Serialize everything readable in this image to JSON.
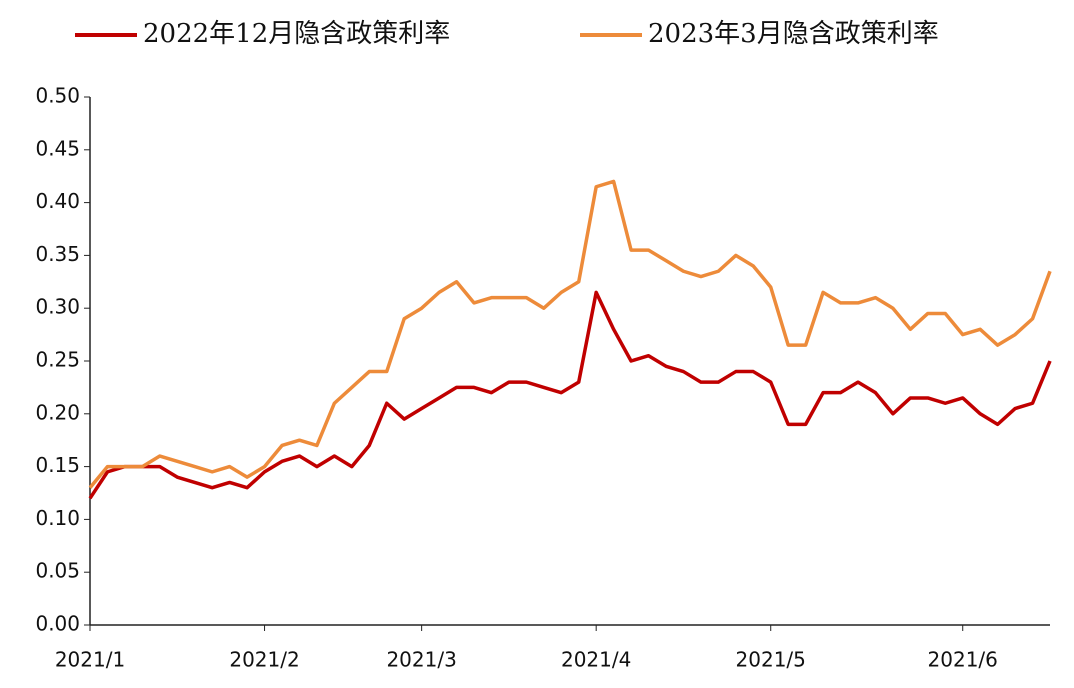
{
  "chart_data": {
    "type": "line",
    "categories": [
      "2021/1",
      null,
      null,
      null,
      null,
      null,
      null,
      null,
      null,
      null,
      "2021/2",
      null,
      null,
      null,
      null,
      null,
      null,
      null,
      null,
      "2021/3",
      null,
      null,
      null,
      null,
      null,
      null,
      null,
      null,
      null,
      "2021/4",
      null,
      null,
      null,
      null,
      null,
      null,
      null,
      null,
      null,
      "2021/5",
      null,
      null,
      null,
      null,
      null,
      null,
      null,
      null,
      null,
      null,
      "2021/6",
      null,
      null,
      null,
      null,
      null
    ],
    "series": [
      {
        "name": "2022年12月隐含政策利率",
        "color": "#c00000",
        "values": [
          0.12,
          0.145,
          0.15,
          0.15,
          0.15,
          0.14,
          0.135,
          0.13,
          0.135,
          0.13,
          0.145,
          0.155,
          0.16,
          0.15,
          0.16,
          0.15,
          0.17,
          0.21,
          0.195,
          0.205,
          0.215,
          0.225,
          0.225,
          0.22,
          0.23,
          0.23,
          0.225,
          0.22,
          0.23,
          0.315,
          0.28,
          0.25,
          0.255,
          0.245,
          0.24,
          0.23,
          0.23,
          0.24,
          0.24,
          0.23,
          0.19,
          0.19,
          0.22,
          0.22,
          0.23,
          0.22,
          0.2,
          0.215,
          0.215,
          0.21,
          0.215,
          0.2,
          0.19,
          0.205,
          0.21,
          0.25
        ]
      },
      {
        "name": "2023年3月隐含政策利率",
        "color": "#ed8b3a",
        "values": [
          0.13,
          0.15,
          0.15,
          0.15,
          0.16,
          0.155,
          0.15,
          0.145,
          0.15,
          0.14,
          0.15,
          0.17,
          0.175,
          0.17,
          0.21,
          0.225,
          0.24,
          0.24,
          0.29,
          0.3,
          0.315,
          0.325,
          0.305,
          0.31,
          0.31,
          0.31,
          0.3,
          0.315,
          0.325,
          0.415,
          0.42,
          0.355,
          0.355,
          0.345,
          0.335,
          0.33,
          0.335,
          0.35,
          0.34,
          0.32,
          0.265,
          0.265,
          0.315,
          0.305,
          0.305,
          0.31,
          0.3,
          0.28,
          0.295,
          0.295,
          0.275,
          0.28,
          0.265,
          0.275,
          0.29,
          0.335
        ]
      }
    ],
    "ylim": [
      0,
      0.5
    ],
    "yticks": [
      {
        "value": 0,
        "label": "0.00"
      },
      {
        "value": 0.05,
        "label": "0.05"
      },
      {
        "value": 0.1,
        "label": "0.10"
      },
      {
        "value": 0.15,
        "label": "0.15"
      },
      {
        "value": 0.2,
        "label": "0.20"
      },
      {
        "value": 0.25,
        "label": "0.25"
      },
      {
        "value": 0.3,
        "label": "0.30"
      },
      {
        "value": 0.35,
        "label": "0.35"
      },
      {
        "value": 0.4,
        "label": "0.40"
      },
      {
        "value": 0.45,
        "label": "0.45"
      },
      {
        "value": 0.5,
        "label": "0.50"
      }
    ],
    "legend": "top",
    "grid": false
  }
}
